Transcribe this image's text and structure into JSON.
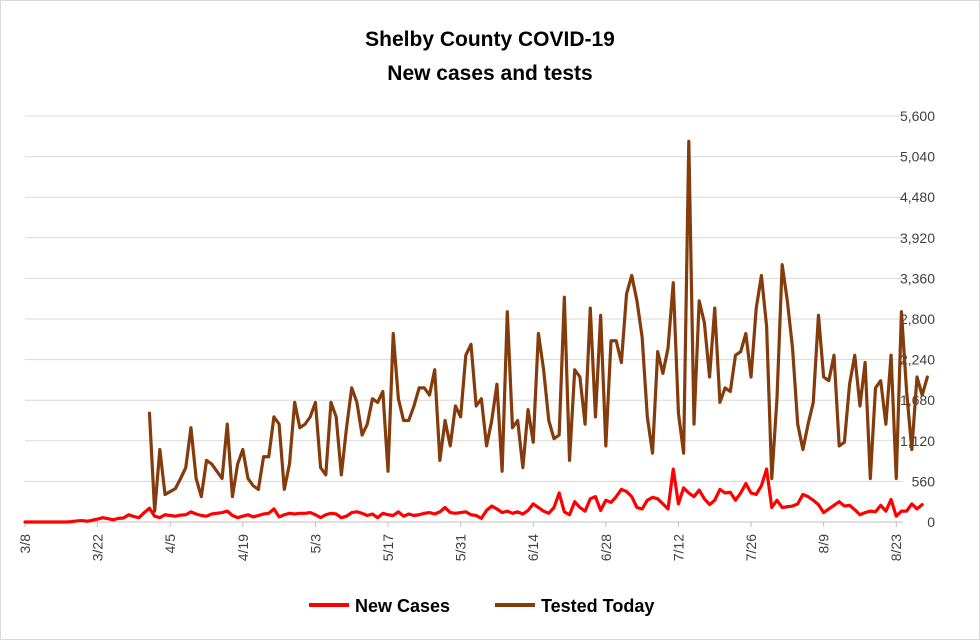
{
  "chart_data": {
    "type": "line",
    "title_lines": [
      "Shelby County COVID-19",
      "New cases and tests"
    ],
    "x_tick_labels": [
      "3/8",
      "3/22",
      "4/5",
      "4/19",
      "5/3",
      "5/17",
      "5/31",
      "6/14",
      "6/28",
      "7/12",
      "7/26",
      "8/9",
      "8/23"
    ],
    "y_tick_labels": [
      "0",
      "560",
      "1,120",
      "1,680",
      "2,240",
      "2,800",
      "3,360",
      "3,920",
      "4,480",
      "5,040",
      "5,600"
    ],
    "ylim": [
      0,
      5600
    ],
    "y_axis_side": "right",
    "grid": true,
    "legend_position": "bottom",
    "start_date": "3/8",
    "series": [
      {
        "name": "New Cases",
        "color": "#ff0000",
        "values": [
          0,
          0,
          0,
          0,
          0,
          0,
          0,
          0,
          0,
          5,
          15,
          20,
          10,
          25,
          40,
          60,
          45,
          30,
          50,
          55,
          100,
          75,
          60,
          130,
          190,
          80,
          60,
          100,
          90,
          80,
          95,
          100,
          140,
          110,
          90,
          80,
          110,
          120,
          130,
          150,
          90,
          60,
          80,
          100,
          70,
          90,
          110,
          120,
          180,
          70,
          100,
          120,
          110,
          120,
          120,
          130,
          100,
          60,
          100,
          120,
          110,
          60,
          80,
          130,
          140,
          120,
          90,
          110,
          60,
          120,
          100,
          90,
          140,
          80,
          110,
          90,
          100,
          120,
          130,
          110,
          140,
          200,
          130,
          120,
          130,
          140,
          100,
          90,
          50,
          160,
          220,
          180,
          130,
          150,
          120,
          140,
          110,
          160,
          250,
          200,
          150,
          120,
          200,
          400,
          140,
          100,
          280,
          200,
          150,
          320,
          350,
          160,
          300,
          270,
          350,
          450,
          420,
          350,
          200,
          180,
          300,
          340,
          320,
          250,
          180,
          730,
          250,
          470,
          400,
          350,
          440,
          320,
          240,
          300,
          450,
          400,
          410,
          300,
          400,
          530,
          400,
          380,
          500,
          730,
          200,
          300,
          200,
          210,
          220,
          250,
          380,
          350,
          300,
          240,
          130,
          180,
          230,
          280,
          220,
          230,
          170,
          100,
          130,
          150,
          140,
          230,
          150,
          310,
          80,
          150,
          150,
          250,
          180,
          240
        ]
      },
      {
        "name": "Tested Today",
        "color": "#843c0c",
        "values": [
          null,
          null,
          null,
          null,
          null,
          null,
          null,
          null,
          null,
          null,
          null,
          null,
          null,
          null,
          null,
          null,
          null,
          null,
          null,
          null,
          null,
          null,
          null,
          null,
          1500,
          150,
          1000,
          380,
          420,
          460,
          600,
          750,
          1300,
          600,
          350,
          850,
          800,
          700,
          600,
          1350,
          350,
          800,
          1000,
          600,
          500,
          450,
          900,
          900,
          1450,
          1350,
          450,
          800,
          1650,
          1300,
          1350,
          1450,
          1650,
          750,
          650,
          1650,
          1450,
          650,
          1300,
          1850,
          1650,
          1200,
          1350,
          1700,
          1650,
          1800,
          700,
          2600,
          1700,
          1400,
          1400,
          1600,
          1850,
          1850,
          1750,
          2100,
          850,
          1400,
          1050,
          1600,
          1450,
          2300,
          2450,
          1600,
          1700,
          1050,
          1400,
          1900,
          700,
          2900,
          1300,
          1400,
          750,
          1550,
          1100,
          2600,
          2100,
          1400,
          1150,
          1200,
          3100,
          850,
          2100,
          2000,
          1350,
          2950,
          1450,
          2850,
          1050,
          2500,
          2500,
          2200,
          3150,
          3400,
          3050,
          2550,
          1450,
          950,
          2350,
          2050,
          2400,
          3300,
          1500,
          950,
          5250,
          1350,
          3050,
          2750,
          2000,
          2950,
          1650,
          1850,
          1800,
          2300,
          2350,
          2600,
          2000,
          2950,
          3400,
          2700,
          600,
          1700,
          3550,
          3050,
          2400,
          1350,
          1000,
          1350,
          1650,
          2850,
          2000,
          1950,
          2300,
          1050,
          1100,
          1900,
          2300,
          1600,
          2200,
          600,
          1850,
          1950,
          1350,
          2300,
          600,
          2900,
          1800,
          1000,
          2000,
          1750,
          2000
        ]
      }
    ]
  }
}
